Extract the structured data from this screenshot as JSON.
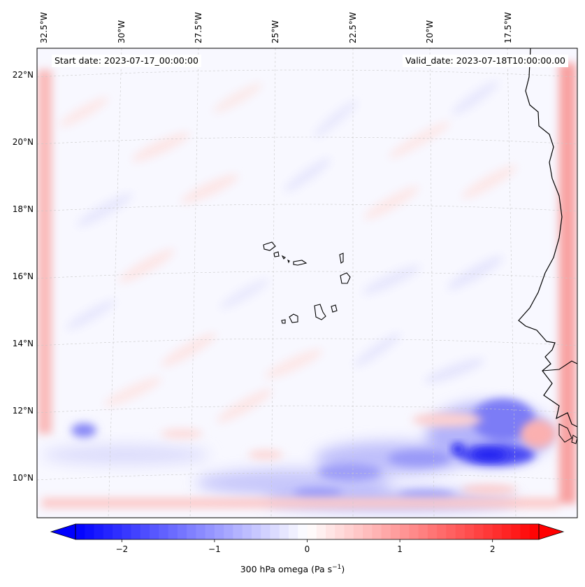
{
  "header": {
    "start_label": "Start date: 2023-07-17_00:00:00",
    "valid_label": "Valid_date: 2023-07-18T10:00:00.00"
  },
  "map": {
    "lon_ticks": [
      "32.5°W",
      "30°W",
      "27.5°W",
      "25°W",
      "22.5°W",
      "20°W",
      "17.5°W"
    ],
    "lat_ticks": [
      "22°N",
      "20°N",
      "18°N",
      "16°N",
      "14°N",
      "12°N",
      "10°N"
    ],
    "lon_range": [
      -33,
      -14.5
    ],
    "lat_range": [
      8.9,
      22.9
    ],
    "field_name": "300 hPa omega",
    "colormap": "bwr",
    "colors": {
      "negative": "#0000ff",
      "zero": "#ffffff",
      "positive": "#ff0000",
      "coast": "#000000"
    }
  },
  "colorbar": {
    "label": "300 hPa omega (Pa s",
    "label_sup": "−1",
    "label_end": ")",
    "ticks": [
      "−2",
      "−1",
      "0",
      "1",
      "2"
    ],
    "tick_values": [
      -2,
      -1,
      0,
      1,
      2
    ],
    "range": [
      -2.5,
      2.5
    ],
    "extend": "both"
  }
}
